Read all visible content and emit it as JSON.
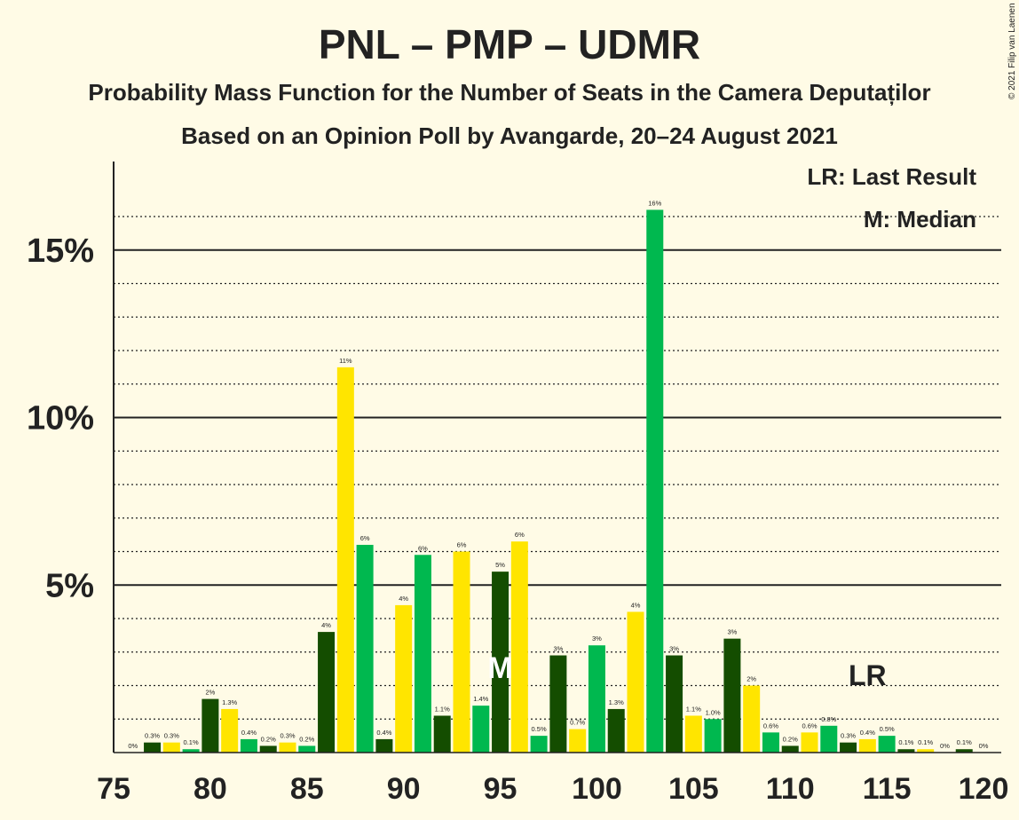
{
  "title": "PNL – PMP – UDMR",
  "subtitle1": "Probability Mass Function for the Number of Seats in the Camera Deputaților",
  "subtitle2": "Based on an Opinion Poll by Avangarde, 20–24 August 2021",
  "copyright": "© 2021 Filip van Laenen",
  "legend_lr": "LR: Last Result",
  "legend_m": "M: Median",
  "colors": {
    "background": "#fffbe6",
    "dark_green": "#144d00",
    "yellow": "#ffe500",
    "green": "#00b84f",
    "text": "#222222",
    "median_marker": "#ffffff"
  },
  "chart_data": {
    "type": "bar",
    "x_range": [
      75,
      120
    ],
    "ylim": [
      0,
      17.5
    ],
    "x_ticks": [
      75,
      80,
      85,
      90,
      95,
      100,
      105,
      110,
      115,
      120
    ],
    "x_tick_labels": [
      "75",
      "80",
      "85",
      "90",
      "95",
      "100",
      "105",
      "110",
      "115",
      "120"
    ],
    "y_ticks": [
      5,
      10,
      15
    ],
    "y_tick_labels": [
      "5%",
      "10%",
      "15%"
    ],
    "median": 95,
    "median_label": "M",
    "last_result": 114,
    "last_result_label": "LR",
    "color_cycle": [
      "dark_green",
      "yellow",
      "green"
    ],
    "bars": [
      {
        "x": 76,
        "value": 0.0,
        "label": "0%"
      },
      {
        "x": 77,
        "value": 0.3,
        "label": "0.3%"
      },
      {
        "x": 78,
        "value": 0.3,
        "label": "0.3%"
      },
      {
        "x": 79,
        "value": 0.1,
        "label": "0.1%"
      },
      {
        "x": 80,
        "value": 1.6,
        "label": "2%"
      },
      {
        "x": 81,
        "value": 1.3,
        "label": "1.3%"
      },
      {
        "x": 82,
        "value": 0.4,
        "label": "0.4%"
      },
      {
        "x": 83,
        "value": 0.2,
        "label": "0.2%"
      },
      {
        "x": 84,
        "value": 0.3,
        "label": "0.3%"
      },
      {
        "x": 85,
        "value": 0.2,
        "label": "0.2%"
      },
      {
        "x": 86,
        "value": 3.6,
        "label": "4%"
      },
      {
        "x": 87,
        "value": 11.5,
        "label": "11%"
      },
      {
        "x": 88,
        "value": 6.2,
        "label": "6%"
      },
      {
        "x": 89,
        "value": 0.4,
        "label": "0.4%"
      },
      {
        "x": 90,
        "value": 4.4,
        "label": "4%"
      },
      {
        "x": 91,
        "value": 5.9,
        "label": "6%"
      },
      {
        "x": 92,
        "value": 1.1,
        "label": "1.1%"
      },
      {
        "x": 93,
        "value": 6.0,
        "label": "6%"
      },
      {
        "x": 94,
        "value": 1.4,
        "label": "1.4%"
      },
      {
        "x": 95,
        "value": 5.4,
        "label": "5%"
      },
      {
        "x": 96,
        "value": 6.3,
        "label": "6%"
      },
      {
        "x": 97,
        "value": 0.5,
        "label": "0.5%"
      },
      {
        "x": 98,
        "value": 2.9,
        "label": "3%"
      },
      {
        "x": 99,
        "value": 0.7,
        "label": "0.7%"
      },
      {
        "x": 100,
        "value": 3.2,
        "label": "3%"
      },
      {
        "x": 101,
        "value": 1.3,
        "label": "1.3%"
      },
      {
        "x": 102,
        "value": 4.2,
        "label": "4%"
      },
      {
        "x": 103,
        "value": 16.2,
        "label": "16%"
      },
      {
        "x": 104,
        "value": 2.9,
        "label": "3%"
      },
      {
        "x": 105,
        "value": 1.1,
        "label": "1.1%"
      },
      {
        "x": 106,
        "value": 1.0,
        "label": "1.0%"
      },
      {
        "x": 107,
        "value": 3.4,
        "label": "3%"
      },
      {
        "x": 108,
        "value": 2.0,
        "label": "2%"
      },
      {
        "x": 109,
        "value": 0.6,
        "label": "0.6%"
      },
      {
        "x": 110,
        "value": 0.2,
        "label": "0.2%"
      },
      {
        "x": 111,
        "value": 0.6,
        "label": "0.6%"
      },
      {
        "x": 112,
        "value": 0.8,
        "label": "0.8%"
      },
      {
        "x": 113,
        "value": 0.3,
        "label": "0.3%"
      },
      {
        "x": 114,
        "value": 0.4,
        "label": "0.4%"
      },
      {
        "x": 115,
        "value": 0.5,
        "label": "0.5%"
      },
      {
        "x": 116,
        "value": 0.1,
        "label": "0.1%"
      },
      {
        "x": 117,
        "value": 0.1,
        "label": "0.1%"
      },
      {
        "x": 118,
        "value": 0.0,
        "label": "0%"
      },
      {
        "x": 119,
        "value": 0.1,
        "label": "0.1%"
      },
      {
        "x": 120,
        "value": 0.0,
        "label": "0%"
      }
    ]
  }
}
